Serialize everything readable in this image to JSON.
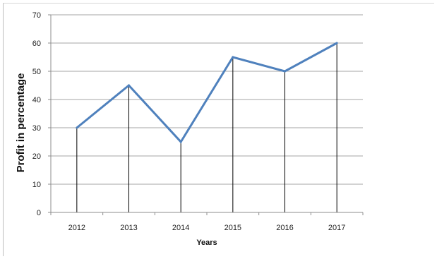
{
  "chart_data": {
    "type": "line",
    "categories": [
      "2012",
      "2013",
      "2014",
      "2015",
      "2016",
      "2017"
    ],
    "series": [
      {
        "values": [
          30,
          45,
          25,
          55,
          50,
          60
        ]
      }
    ],
    "title": "",
    "xlabel": "Years",
    "ylabel": "Profit in percentage",
    "ylim": [
      0,
      70
    ],
    "yticks": [
      "0",
      "10",
      "20",
      "30",
      "40",
      "50",
      "60",
      "70"
    ],
    "grid": true,
    "drop_lines": true,
    "line_color": "#4f81bd",
    "grid_color": "#a6a6a6"
  }
}
